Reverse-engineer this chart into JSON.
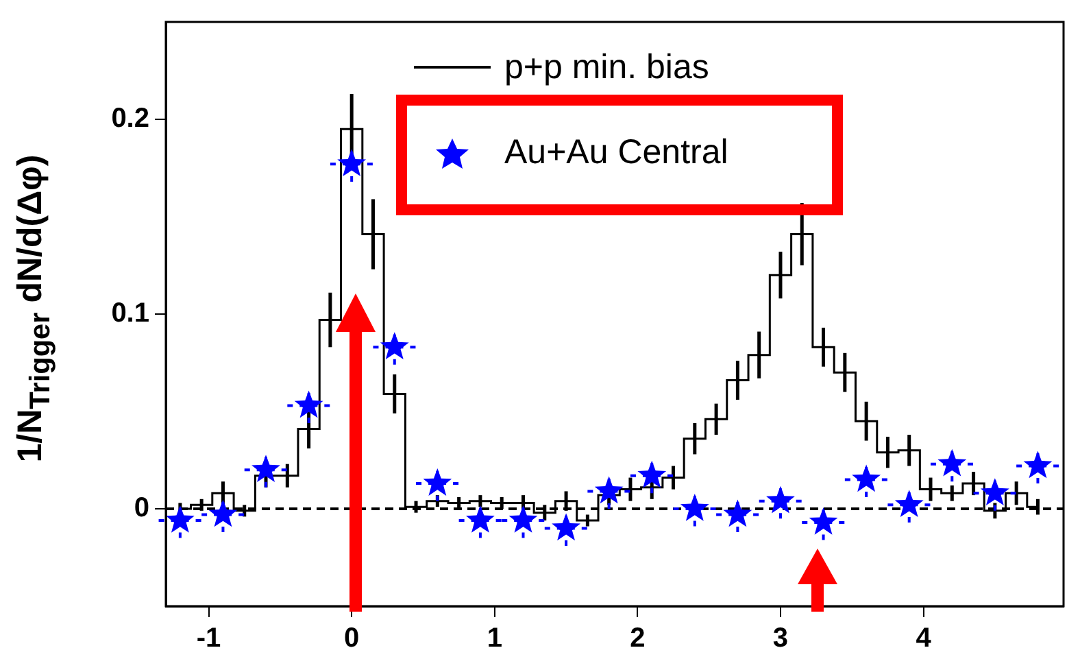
{
  "chart_data": {
    "type": "scatter",
    "ylabel": "1/N$_{Trigger}$ dN/d(Δφ)",
    "xlim": [
      -1.3,
      4.98
    ],
    "xticks": [
      -1,
      0,
      1,
      2,
      3,
      4
    ],
    "ylim": [
      -0.05,
      0.25
    ],
    "yticks": [
      0,
      0.1,
      0.2
    ],
    "grid": false,
    "legend": "top",
    "ref_lines": [
      {
        "axis": "y",
        "value": 0,
        "color": "#000000",
        "line_style": "dashed"
      }
    ],
    "series": [
      {
        "name": "p+p min. bias",
        "type": "step",
        "color": "#000000",
        "line_style": "solid",
        "marker": "none",
        "x": [
          -1.2,
          -1.05,
          -0.9,
          -0.75,
          -0.6,
          -0.45,
          -0.3,
          -0.15,
          0,
          0.15,
          0.3,
          0.45,
          0.6,
          0.75,
          0.9,
          1.05,
          1.2,
          1.35,
          1.5,
          1.65,
          1.8,
          1.95,
          2.1,
          2.25,
          2.4,
          2.55,
          2.7,
          2.85,
          3.0,
          3.15,
          3.3,
          3.45,
          3.6,
          3.75,
          3.9,
          4.05,
          4.2,
          4.35,
          4.5,
          4.65,
          4.8
        ],
        "values": [
          0.0,
          0.002,
          0.008,
          -0.001,
          0.017,
          0.017,
          0.041,
          0.097,
          0.195,
          0.141,
          0.059,
          0.001,
          0.004,
          0.003,
          0.004,
          0.003,
          0.003,
          -0.002,
          0.004,
          -0.006,
          0.007,
          0.01,
          0.011,
          0.016,
          0.036,
          0.046,
          0.066,
          0.079,
          0.12,
          0.141,
          0.083,
          0.07,
          0.045,
          0.029,
          0.03,
          0.01,
          0.008,
          0.013,
          -0.001,
          0.008,
          0.001
        ],
        "errors": [
          0.003,
          0.003,
          0.006,
          0.003,
          0.006,
          0.006,
          0.01,
          0.014,
          0.018,
          0.018,
          0.01,
          0.003,
          0.003,
          0.003,
          0.003,
          0.003,
          0.004,
          0.004,
          0.005,
          0.003,
          0.005,
          0.006,
          0.006,
          0.006,
          0.008,
          0.008,
          0.01,
          0.012,
          0.012,
          0.016,
          0.01,
          0.01,
          0.01,
          0.008,
          0.008,
          0.006,
          0.004,
          0.006,
          0.004,
          0.006,
          0.004
        ]
      },
      {
        "name": "Au+Au Central",
        "color": "#0000ff",
        "marker": "star",
        "x": [
          -1.2,
          -0.9,
          -0.6,
          -0.3,
          0,
          0.3,
          0.6,
          0.9,
          1.2,
          1.5,
          1.8,
          2.1,
          2.4,
          2.7,
          3.0,
          3.3,
          3.6,
          3.9,
          4.2,
          4.5,
          4.8
        ],
        "values": [
          -0.006,
          -0.003,
          0.02,
          0.053,
          0.177,
          0.083,
          0.013,
          -0.006,
          -0.006,
          -0.01,
          0.009,
          0.017,
          0.0,
          -0.003,
          0.004,
          -0.007,
          0.015,
          0.002,
          0.023,
          0.008,
          0.022
        ],
        "errors": [
          0.009,
          0.009,
          0.009,
          0.009,
          0.009,
          0.009,
          0.009,
          0.009,
          0.009,
          0.009,
          0.009,
          0.009,
          0.009,
          0.009,
          0.009,
          0.009,
          0.009,
          0.009,
          0.009,
          0.009,
          0.009
        ],
        "xerrors": [
          0.15,
          0.15,
          0.15,
          0.15,
          0.15,
          0.15,
          0.15,
          0.15,
          0.15,
          0.15,
          0.15,
          0.15,
          0.15,
          0.15,
          0.15,
          0.15,
          0.15,
          0.15,
          0.15,
          0.15,
          0.15
        ]
      }
    ]
  }
}
